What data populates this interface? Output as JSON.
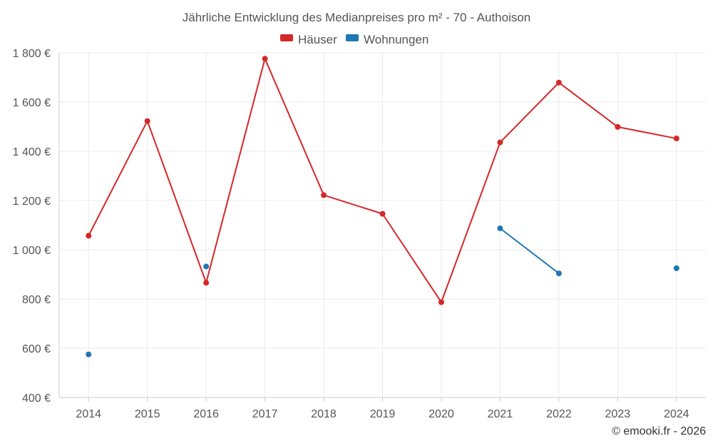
{
  "chart_data": {
    "type": "line",
    "title": "Jährliche Entwicklung des Medianpreises pro m² - 70 - Authoison",
    "xlabel": "",
    "ylabel": "",
    "categories": [
      "2014",
      "2015",
      "2016",
      "2017",
      "2018",
      "2019",
      "2020",
      "2021",
      "2022",
      "2023",
      "2024"
    ],
    "ylim": [
      400,
      1800
    ],
    "yticks": [
      400,
      600,
      800,
      1000,
      1200,
      1400,
      1600,
      1800
    ],
    "ytick_labels": [
      "400 €",
      "600 €",
      "800 €",
      "1 000 €",
      "1 200 €",
      "1 400 €",
      "1 600 €",
      "1 800 €"
    ],
    "grid": true,
    "legend_position": "top-center",
    "series": [
      {
        "name": "Häuser",
        "color": "#d62728",
        "values": [
          1057,
          1523,
          866,
          1776,
          1222,
          1146,
          787,
          1436,
          1679,
          1499,
          1452
        ]
      },
      {
        "name": "Wohnungen",
        "color": "#1f77b4",
        "values": [
          575,
          null,
          932,
          null,
          null,
          null,
          null,
          1087,
          904,
          null,
          925
        ]
      }
    ]
  },
  "credit": "© emooki.fr - 2026"
}
